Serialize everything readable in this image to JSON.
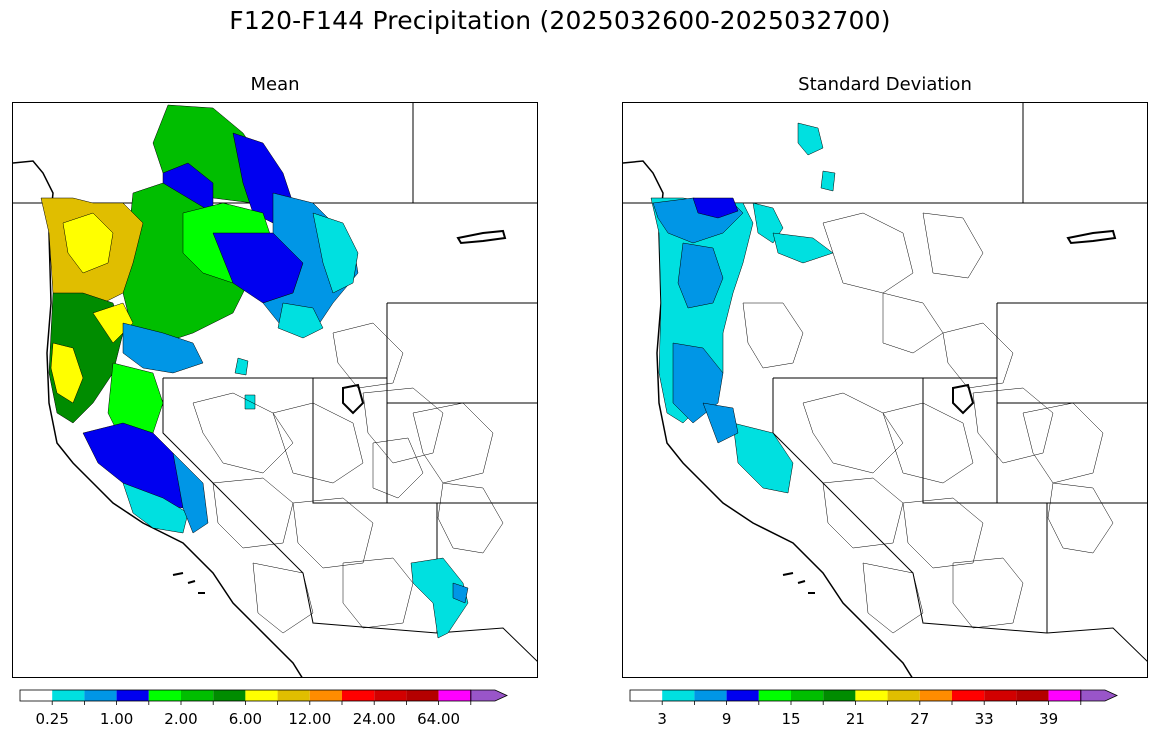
{
  "title": "F120-F144 Precipitation (2025032600-2025032700)",
  "panels": [
    {
      "title": "Mean"
    },
    {
      "title": "Standard Deviation"
    }
  ],
  "colorbars": [
    {
      "colors": [
        "#ffffff",
        "#00e0e0",
        "#0096e6",
        "#0000f0",
        "#00ff00",
        "#00be00",
        "#008c00",
        "#ffff00",
        "#e0be00",
        "#ff8c00",
        "#ff0000",
        "#d20000",
        "#b40000",
        "#ff00ff",
        "#9955c9"
      ],
      "labels": [
        "0.25",
        "1.00",
        "2.00",
        "6.00",
        "12.00",
        "24.00",
        "64.00"
      ],
      "label_after_segment": [
        1,
        3,
        5,
        7,
        9,
        11,
        13
      ],
      "extend": "max"
    },
    {
      "colors": [
        "#ffffff",
        "#00e0e0",
        "#0096e6",
        "#0000f0",
        "#00ff00",
        "#00be00",
        "#008c00",
        "#ffff00",
        "#e0be00",
        "#ff8c00",
        "#ff0000",
        "#d20000",
        "#b40000",
        "#ff00ff",
        "#9955c9"
      ],
      "labels": [
        "3",
        "9",
        "15",
        "21",
        "27",
        "33",
        "39"
      ],
      "label_after_segment": [
        1,
        3,
        5,
        7,
        9,
        11,
        13
      ],
      "extend": "max"
    }
  ]
}
